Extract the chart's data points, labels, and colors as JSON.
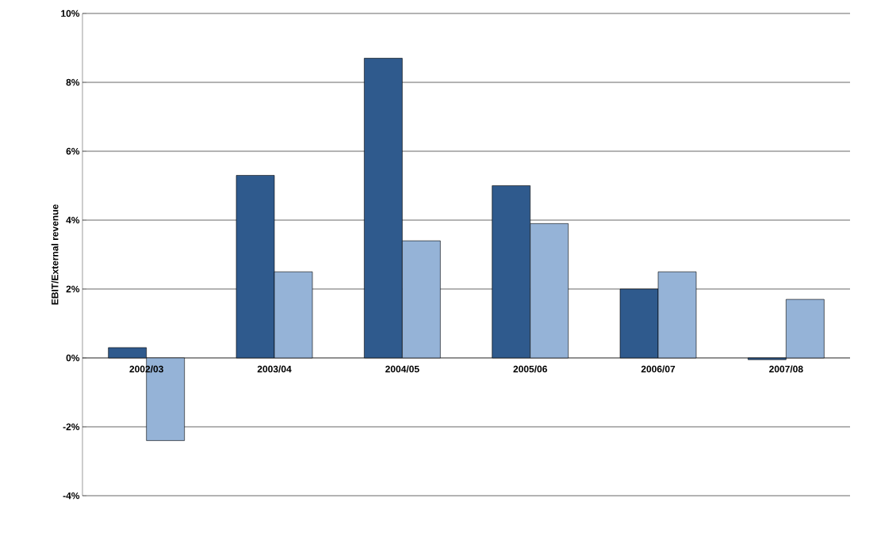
{
  "chart_data": {
    "type": "bar",
    "ylabel": "EBIT/External revenue",
    "categories": [
      "2002/03",
      "2003/04",
      "2004/05",
      "2005/06",
      "2006/07",
      "2007/08"
    ],
    "series": [
      {
        "color": "#2f5a8d",
        "values": [
          0.3,
          5.3,
          8.7,
          5.0,
          2.0,
          -0.05
        ]
      },
      {
        "color": "#95b3d7",
        "values": [
          -2.4,
          2.5,
          3.4,
          3.9,
          2.5,
          1.7
        ]
      }
    ],
    "ylim": [
      -4,
      10
    ],
    "yticks": [
      {
        "value": -4,
        "label": "-4%"
      },
      {
        "value": -2,
        "label": "-2%"
      },
      {
        "value": 0,
        "label": "0%"
      },
      {
        "value": 2,
        "label": "2%"
      },
      {
        "value": 4,
        "label": "4%"
      },
      {
        "value": 6,
        "label": "6%"
      },
      {
        "value": 8,
        "label": "8%"
      },
      {
        "value": 10,
        "label": "10%"
      }
    ],
    "grid": "y"
  }
}
